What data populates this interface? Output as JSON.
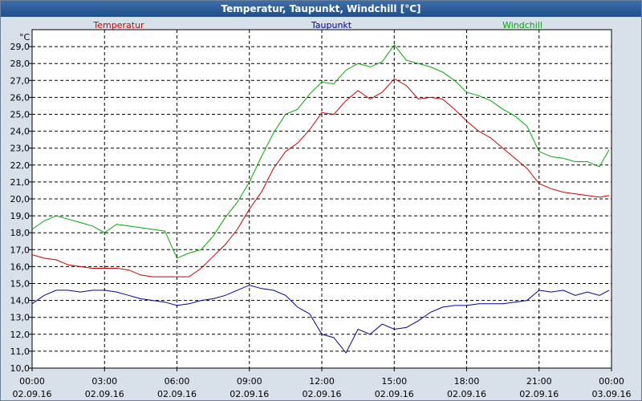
{
  "window": {
    "title": "Temperatur, Taupunkt, Windchill [°C]"
  },
  "chart_data": {
    "type": "line",
    "title": "Temperatur, Taupunkt, Windchill [°C]",
    "ylabel": "°C",
    "ylim": [
      10.0,
      30.0
    ],
    "yticks": [
      "10,0",
      "11,0",
      "12,0",
      "13,0",
      "14,0",
      "15,0",
      "16,0",
      "17,0",
      "18,0",
      "19,0",
      "20,0",
      "21,0",
      "22,0",
      "23,0",
      "24,0",
      "25,0",
      "26,0",
      "27,0",
      "28,0",
      "29,0"
    ],
    "xlim": [
      0,
      24
    ],
    "xticks": [
      {
        "time": "00:00",
        "date": "02.09.16"
      },
      {
        "time": "03:00",
        "date": "02.09.16"
      },
      {
        "time": "06:00",
        "date": "02.09.16"
      },
      {
        "time": "09:00",
        "date": "02.09.16"
      },
      {
        "time": "12:00",
        "date": "02.09.16"
      },
      {
        "time": "15:00",
        "date": "02.09.16"
      },
      {
        "time": "18:00",
        "date": "02.09.16"
      },
      {
        "time": "21:00",
        "date": "02.09.16"
      },
      {
        "time": "00:00",
        "date": "03.09.16"
      }
    ],
    "grid": true,
    "legend_position": "top",
    "series": [
      {
        "name": "Temperatur",
        "color": "#cc0000",
        "x": [
          0,
          0.5,
          1,
          1.5,
          2,
          2.5,
          3,
          3.5,
          4,
          4.5,
          5,
          5.5,
          6,
          6.5,
          7,
          7.5,
          8,
          8.5,
          9,
          9.5,
          10,
          10.5,
          11,
          11.5,
          12,
          12.5,
          13,
          13.5,
          14,
          14.5,
          15,
          15.5,
          16,
          16.5,
          17,
          17.5,
          18,
          18.5,
          19,
          19.5,
          20,
          20.5,
          21,
          21.5,
          22,
          22.5,
          23,
          23.5,
          23.9
        ],
        "y": [
          16.7,
          16.5,
          16.4,
          16.1,
          16.0,
          15.9,
          15.9,
          15.9,
          15.8,
          15.5,
          15.4,
          15.4,
          15.4,
          15.4,
          15.9,
          16.6,
          17.3,
          18.2,
          19.4,
          20.4,
          21.8,
          22.8,
          23.3,
          24.1,
          25.1,
          25.0,
          25.8,
          26.4,
          25.9,
          26.3,
          27.1,
          26.7,
          25.9,
          26.0,
          25.9,
          25.3,
          24.6,
          24.0,
          23.6,
          23.0,
          22.4,
          21.8,
          20.9,
          20.6,
          20.4,
          20.3,
          20.2,
          20.1,
          20.2
        ]
      },
      {
        "name": "Taupunkt",
        "color": "#000099",
        "x": [
          0,
          0.5,
          1,
          1.5,
          2,
          2.5,
          3,
          3.5,
          4,
          4.5,
          5,
          5.5,
          6,
          6.5,
          7,
          7.5,
          8,
          8.5,
          9,
          9.5,
          10,
          10.5,
          11,
          11.5,
          12,
          12.5,
          13,
          13.5,
          14,
          14.5,
          15,
          15.5,
          16,
          16.5,
          17,
          17.5,
          18,
          18.5,
          19,
          19.5,
          20,
          20.5,
          21,
          21.5,
          22,
          22.5,
          23,
          23.5,
          23.9
        ],
        "y": [
          13.8,
          14.3,
          14.6,
          14.6,
          14.5,
          14.6,
          14.6,
          14.5,
          14.3,
          14.1,
          14.0,
          13.9,
          13.7,
          13.8,
          14.0,
          14.1,
          14.3,
          14.6,
          14.9,
          14.7,
          14.6,
          14.3,
          13.6,
          13.2,
          12.0,
          11.8,
          10.9,
          12.3,
          12.0,
          12.6,
          12.3,
          12.4,
          12.8,
          13.3,
          13.6,
          13.7,
          13.7,
          13.8,
          13.8,
          13.8,
          13.9,
          14.0,
          14.6,
          14.5,
          14.6,
          14.3,
          14.5,
          14.3,
          14.6
        ]
      },
      {
        "name": "Windchill",
        "color": "#00aa00",
        "x": [
          0,
          0.5,
          1,
          1.5,
          2,
          2.5,
          3,
          3.5,
          4,
          4.5,
          5,
          5.5,
          6,
          6.5,
          7,
          7.5,
          8,
          8.5,
          9,
          9.5,
          10,
          10.5,
          11,
          11.5,
          12,
          12.5,
          13,
          13.5,
          14,
          14.5,
          15,
          15.5,
          16,
          16.5,
          17,
          17.5,
          18,
          18.5,
          19,
          19.5,
          20,
          20.5,
          21,
          21.5,
          22,
          22.5,
          23,
          23.5,
          23.9
        ],
        "y": [
          18.2,
          18.7,
          19.0,
          18.8,
          18.6,
          18.4,
          18.0,
          18.5,
          18.4,
          18.3,
          18.2,
          18.1,
          16.5,
          16.8,
          17.0,
          17.8,
          18.9,
          19.8,
          21.0,
          22.5,
          23.9,
          25.0,
          25.3,
          26.2,
          26.9,
          26.8,
          27.6,
          28.0,
          27.8,
          28.1,
          29.1,
          28.2,
          28.0,
          27.8,
          27.5,
          27.0,
          26.3,
          26.1,
          25.8,
          25.3,
          24.9,
          24.3,
          22.8,
          22.5,
          22.4,
          22.2,
          22.2,
          21.9,
          22.9
        ]
      }
    ]
  }
}
